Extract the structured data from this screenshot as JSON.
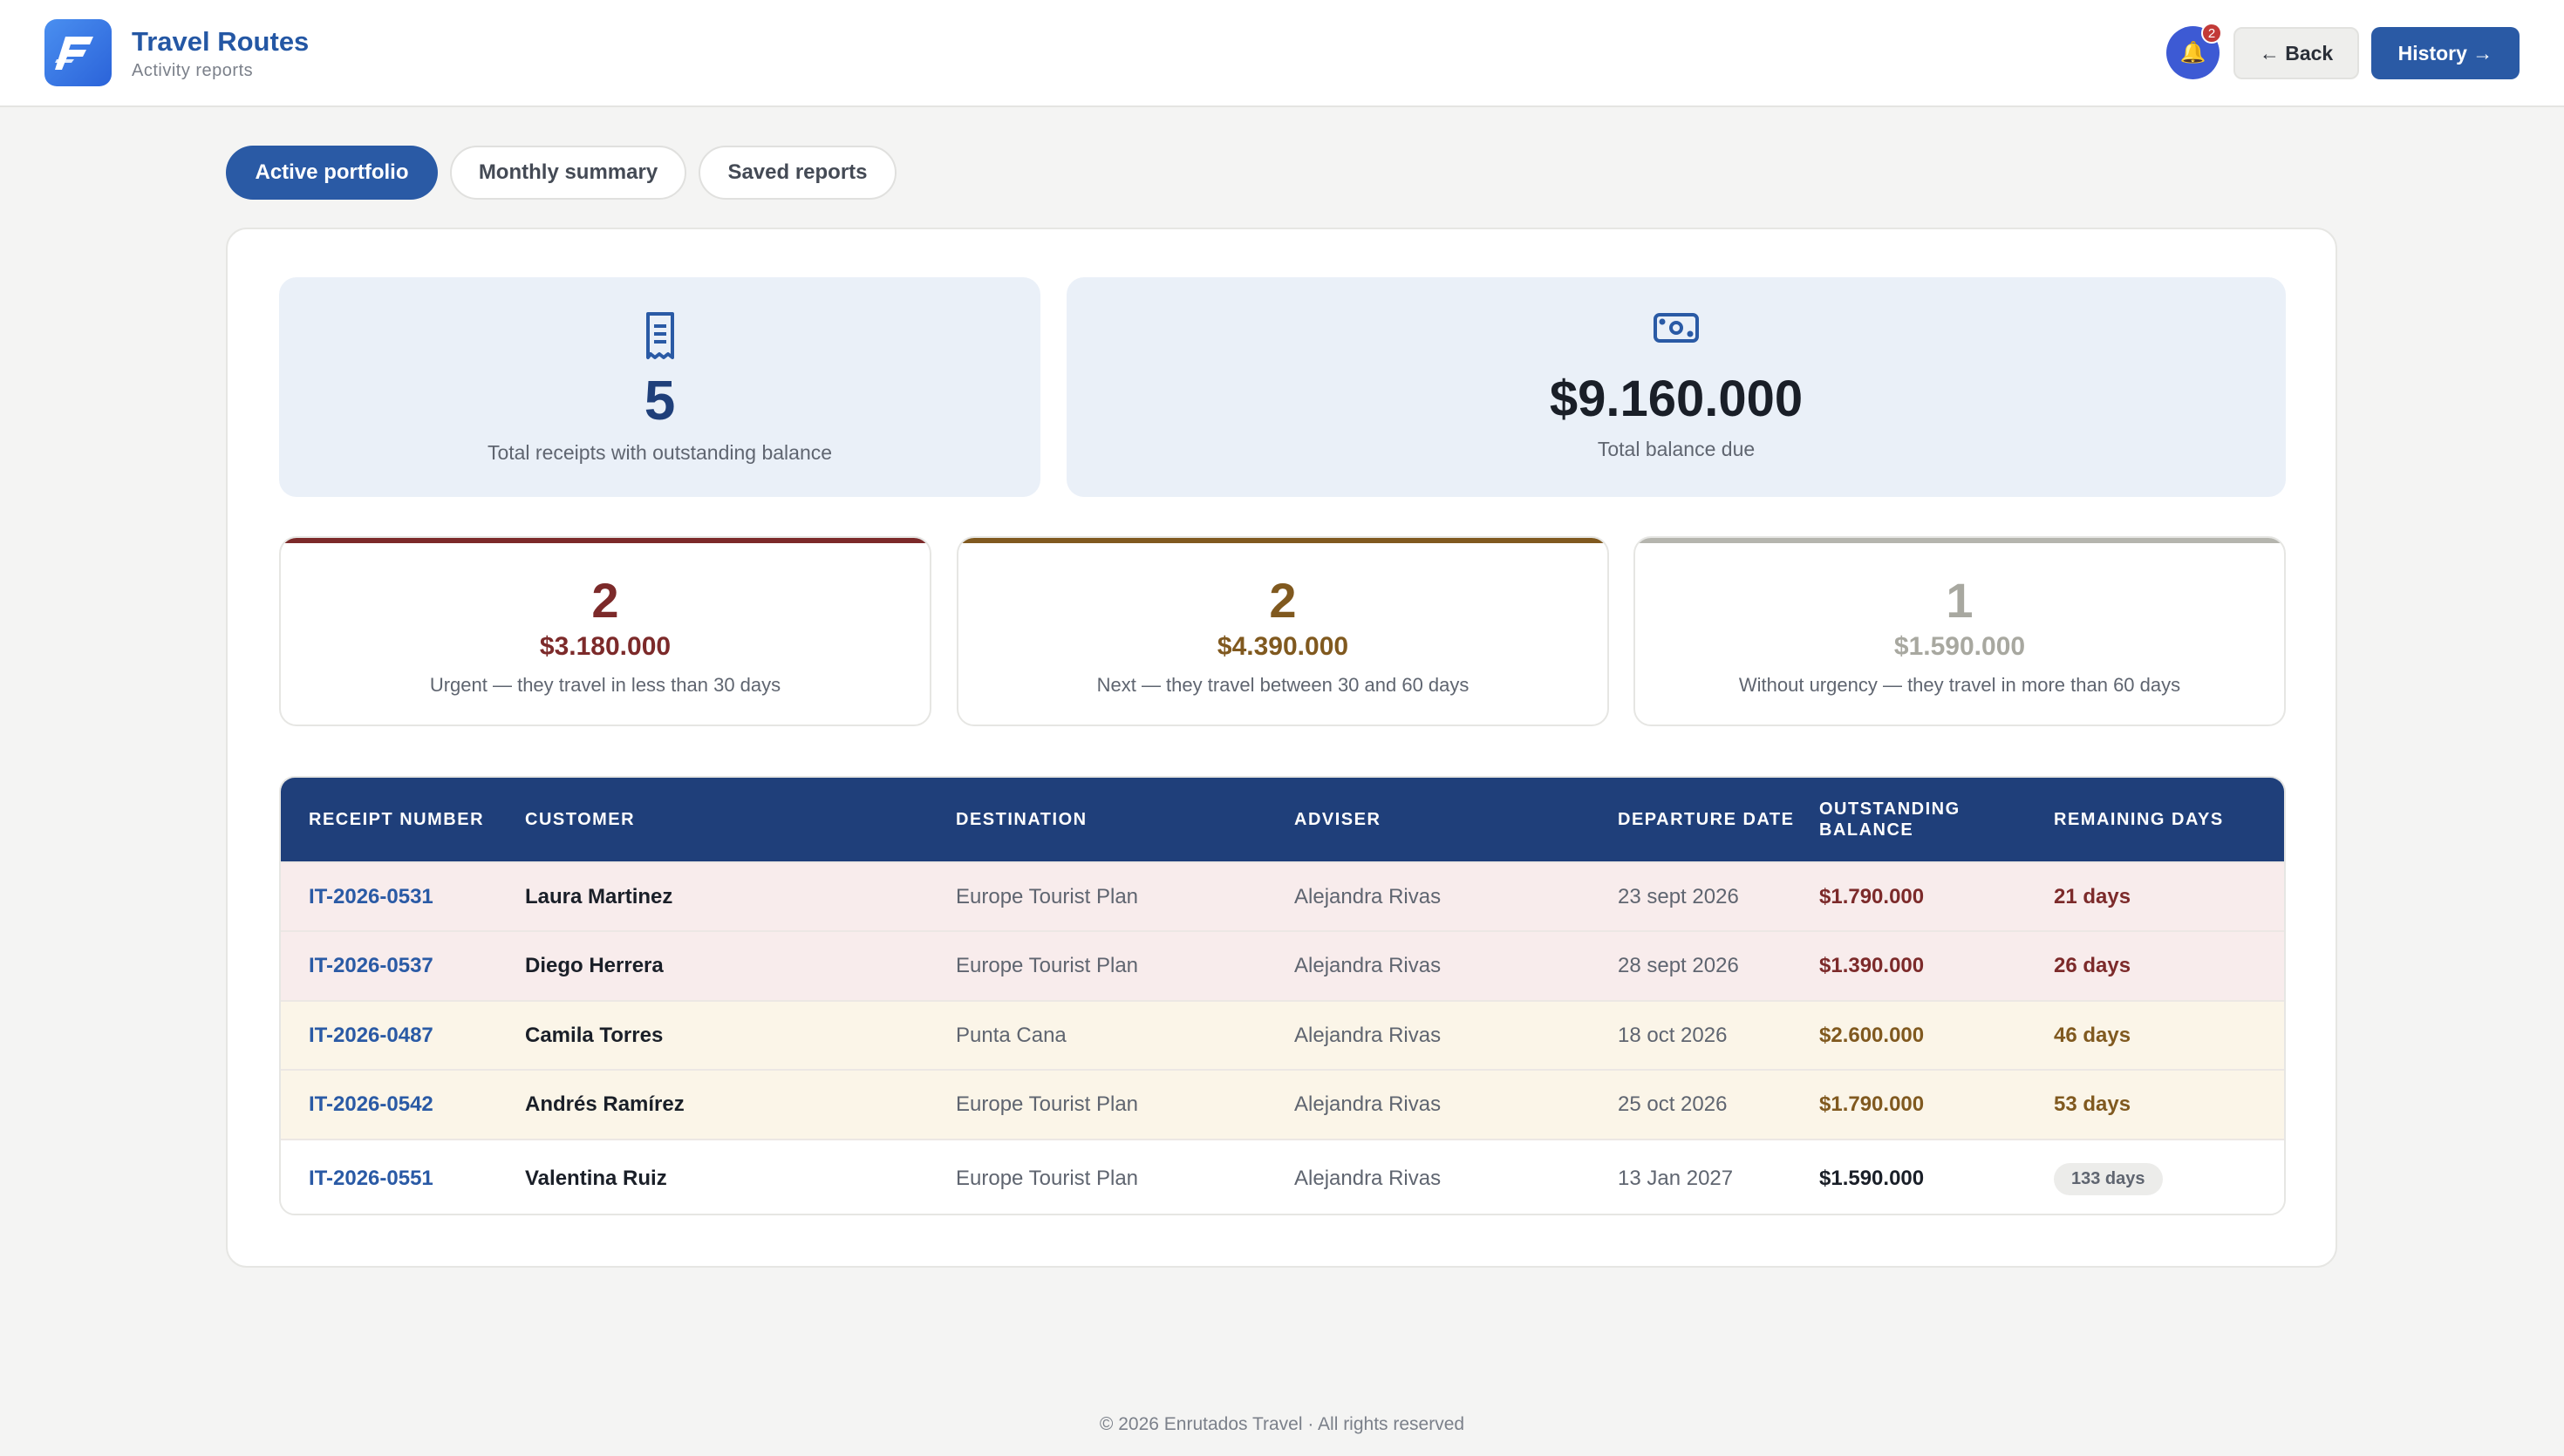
{
  "app": {
    "title": "Travel Routes",
    "subtitle": "Activity reports"
  },
  "header": {
    "notification_count": "2",
    "back_label": "← Back",
    "history_label": "History →"
  },
  "tabs": [
    {
      "label": "Active portfolio",
      "active": true
    },
    {
      "label": "Monthly summary",
      "active": false
    },
    {
      "label": "Saved reports",
      "active": false
    }
  ],
  "summary": {
    "receipts": {
      "value": "5",
      "label": "Total receipts with outstanding balance",
      "icon": "receipt-icon"
    },
    "balance": {
      "value": "$9.160.000",
      "label": "Total balance due",
      "icon": "cash-icon"
    }
  },
  "urgency": [
    {
      "count": "2",
      "amount": "$3.180.000",
      "label": "Urgent — they travel in less than 30 days",
      "color": "#7c2a2a",
      "bar_color": "#7c2a2a"
    },
    {
      "count": "2",
      "amount": "$4.390.000",
      "label": "Next — they travel between 30 and 60 days",
      "color": "#80591f",
      "bar_color": "#80591f"
    },
    {
      "count": "1",
      "amount": "$1.590.000",
      "label": "Without urgency — they travel in more than 60 days",
      "color": "#a8a8a0",
      "bar_color": "#b5b5ae"
    }
  ],
  "table": {
    "columns": [
      "RECEIPT NUMBER",
      "CUSTOMER",
      "DESTINATION",
      "ADVISER",
      "DEPARTURE DATE",
      "OUTSTANDING BALANCE",
      "REMAINING DAYS"
    ],
    "rows": [
      {
        "receipt": "IT-2026-0531",
        "customer": "Laura Martinez",
        "destination": "Europe Tourist Plan",
        "adviser": "Alejandra Rivas",
        "departure": "23 sept 2026",
        "balance": "$1.790.000",
        "days": "21 days",
        "level": "urgent"
      },
      {
        "receipt": "IT-2026-0537",
        "customer": "Diego Herrera",
        "destination": "Europe Tourist Plan",
        "adviser": "Alejandra Rivas",
        "departure": "28 sept 2026",
        "balance": "$1.390.000",
        "days": "26 days",
        "level": "urgent"
      },
      {
        "receipt": "IT-2026-0487",
        "customer": "Camila Torres",
        "destination": "Punta Cana",
        "adviser": "Alejandra Rivas",
        "departure": "18 oct 2026",
        "balance": "$2.600.000",
        "days": "46 days",
        "level": "next"
      },
      {
        "receipt": "IT-2026-0542",
        "customer": "Andrés Ramírez",
        "destination": "Europe Tourist Plan",
        "adviser": "Alejandra Rivas",
        "departure": "25 oct 2026",
        "balance": "$1.790.000",
        "days": "53 days",
        "level": "next"
      },
      {
        "receipt": "IT-2026-0551",
        "customer": "Valentina Ruiz",
        "destination": "Europe Tourist Plan",
        "adviser": "Alejandra Rivas",
        "departure": "13 Jan 2027",
        "balance": "$1.590.000",
        "days": "133 days",
        "level": "none"
      }
    ]
  },
  "colors": {
    "brand": "#2a5aa5",
    "header_navy": "#1f3f7a",
    "urgent_bg": "#f8ecec",
    "urgent_text": "#7c2a2a",
    "next_bg": "#fbf5e8",
    "next_text": "#80591f"
  },
  "footer": "© 2026 Enrutados Travel · All rights reserved"
}
